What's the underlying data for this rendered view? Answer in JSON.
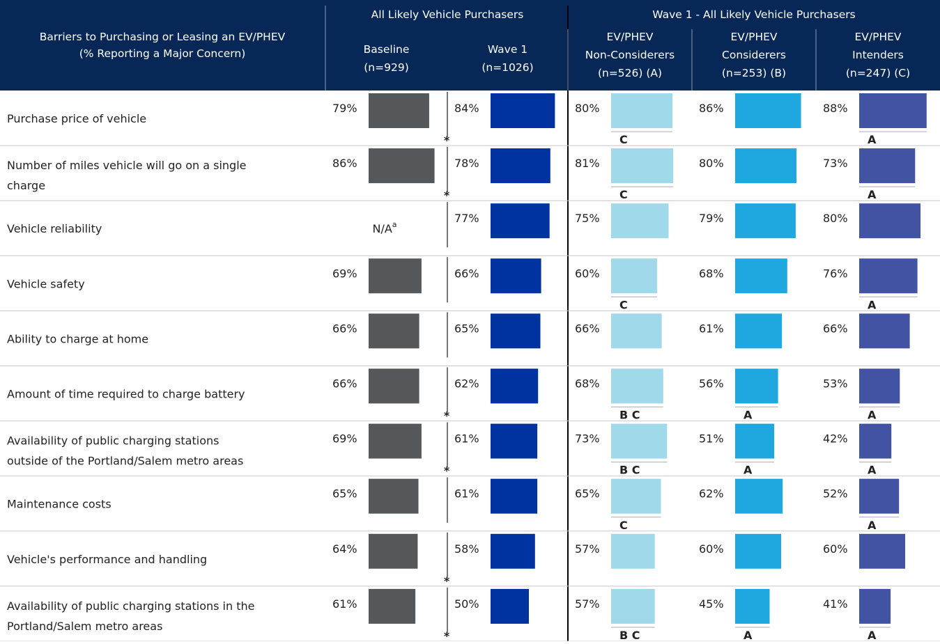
{
  "header": {
    "title": [
      "Barriers to Purchasing or Leasing an EV/PHEV",
      "(% Reporting a Major Concern)"
    ],
    "groups": [
      "All Likely Vehicle Purchasers",
      "Wave 1 - All Likely Vehicle Purchasers"
    ],
    "columns": [
      {
        "label": [
          "Baseline",
          "(n=929)"
        ],
        "color": "#54585a"
      },
      {
        "label": [
          "Wave 1",
          "(n=1026)"
        ],
        "color": "#0033a0"
      },
      {
        "label": [
          "EV/PHEV",
          "Non-Considerers",
          "(n=526) (A)"
        ],
        "color": "#9fd9ea"
      },
      {
        "label": [
          "EV/PHEV",
          "Considerers",
          "(n=253) (B)"
        ],
        "color": "#1fa8e0"
      },
      {
        "label": [
          "EV/PHEV",
          "Intenders",
          "(n=247) (C)"
        ],
        "color": "#4353a3"
      }
    ]
  },
  "table": {
    "na_label": "N/A",
    "na_note": "a",
    "star": "*",
    "rows": [
      {
        "label": [
          "Purchase price of vehicle"
        ],
        "values": [
          79,
          84,
          80,
          86,
          88
        ],
        "value_labels": [
          "79%",
          "84%",
          "80%",
          "86%",
          "88%"
        ],
        "sig": [
          null,
          null,
          "C",
          null,
          "A"
        ],
        "star": true
      },
      {
        "label": [
          "Number of miles vehicle will go on a single",
          "charge"
        ],
        "values": [
          86,
          78,
          81,
          80,
          73
        ],
        "value_labels": [
          "86%",
          "78%",
          "81%",
          "80%",
          "73%"
        ],
        "sig": [
          null,
          null,
          "C",
          null,
          "A"
        ],
        "star": true
      },
      {
        "label": [
          "Vehicle reliability"
        ],
        "values": [
          null,
          77,
          75,
          79,
          80
        ],
        "value_labels": [
          null,
          "77%",
          "75%",
          "79%",
          "80%"
        ],
        "sig": [
          null,
          null,
          null,
          null,
          null
        ],
        "star": false
      },
      {
        "label": [
          "Vehicle safety"
        ],
        "values": [
          69,
          66,
          60,
          68,
          76
        ],
        "value_labels": [
          "69%",
          "66%",
          "60%",
          "68%",
          "76%"
        ],
        "sig": [
          null,
          null,
          "C",
          null,
          "A"
        ],
        "star": false
      },
      {
        "label": [
          "Ability to charge at home"
        ],
        "values": [
          66,
          65,
          66,
          61,
          66
        ],
        "value_labels": [
          "66%",
          "65%",
          "66%",
          "61%",
          "66%"
        ],
        "sig": [
          null,
          null,
          null,
          null,
          null
        ],
        "star": false
      },
      {
        "label": [
          "Amount of time required to charge battery"
        ],
        "values": [
          66,
          62,
          68,
          56,
          53
        ],
        "value_labels": [
          "66%",
          "62%",
          "68%",
          "56%",
          "53%"
        ],
        "sig": [
          null,
          null,
          "B C",
          "A",
          "A"
        ],
        "star": true
      },
      {
        "label": [
          "Availability of public charging stations",
          "outside of the Portland/Salem metro areas"
        ],
        "values": [
          69,
          61,
          73,
          51,
          42
        ],
        "value_labels": [
          "69%",
          "61%",
          "73%",
          "51%",
          "42%"
        ],
        "sig": [
          null,
          null,
          "B C",
          "A",
          "A"
        ],
        "star": true
      },
      {
        "label": [
          "Maintenance costs"
        ],
        "values": [
          65,
          61,
          65,
          62,
          52
        ],
        "value_labels": [
          "65%",
          "61%",
          "65%",
          "62%",
          "52%"
        ],
        "sig": [
          null,
          null,
          "C",
          null,
          "A"
        ],
        "star": false
      },
      {
        "label": [
          "Vehicle's performance and handling"
        ],
        "values": [
          64,
          58,
          57,
          60,
          60
        ],
        "value_labels": [
          "64%",
          "58%",
          "57%",
          "60%",
          "60%"
        ],
        "sig": [
          null,
          null,
          null,
          null,
          null
        ],
        "star": true
      },
      {
        "label": [
          "Availability of public charging stations in the",
          "Portland/Salem metro areas"
        ],
        "values": [
          61,
          50,
          57,
          45,
          41
        ],
        "value_labels": [
          "61%",
          "50%",
          "57%",
          "45%",
          "41%"
        ],
        "sig": [
          null,
          null,
          "B C",
          "A",
          "A"
        ],
        "star": true
      }
    ]
  }
}
